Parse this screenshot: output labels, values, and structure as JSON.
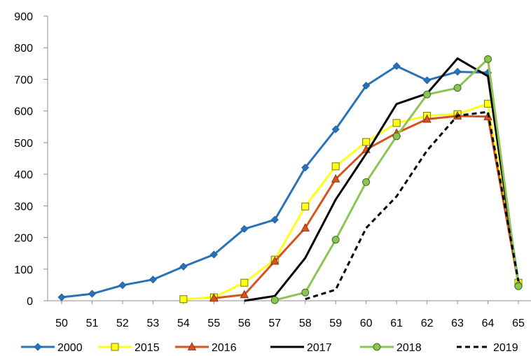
{
  "chart_data": {
    "type": "line",
    "x": [
      50,
      51,
      52,
      53,
      54,
      55,
      56,
      57,
      58,
      59,
      60,
      61,
      62,
      63,
      64,
      65
    ],
    "xticks": [
      "50",
      "51",
      "52",
      "53",
      "54",
      "55",
      "56",
      "57",
      "58",
      "59",
      "60",
      "61",
      "62",
      "63",
      "64",
      "65"
    ],
    "ylim": [
      0,
      900
    ],
    "yticks": [
      "0",
      "100",
      "200",
      "300",
      "400",
      "500",
      "600",
      "700",
      "800",
      "900"
    ],
    "grid": false,
    "legend_position": "bottom",
    "series": [
      {
        "name": "2000",
        "color": "#2a72b8",
        "dash": "solid",
        "marker": "diamond",
        "values": [
          11,
          22,
          49,
          67,
          108,
          146,
          227,
          256,
          421,
          542,
          680,
          742,
          697,
          724,
          721,
          57
        ]
      },
      {
        "name": "2015",
        "color": "#ffff1a",
        "dash": "solid",
        "marker": "square",
        "values": [
          null,
          null,
          null,
          null,
          5,
          11,
          57,
          130,
          298,
          425,
          502,
          562,
          585,
          590,
          623,
          57
        ]
      },
      {
        "name": "2016",
        "color": "#d5531f",
        "dash": "solid",
        "marker": "triangle",
        "values": [
          null,
          null,
          null,
          null,
          null,
          8,
          19,
          125,
          230,
          385,
          478,
          530,
          574,
          584,
          582,
          55
        ]
      },
      {
        "name": "2017",
        "color": "#000000",
        "dash": "solid",
        "marker": "none",
        "values": [
          null,
          null,
          null,
          null,
          null,
          null,
          0,
          15,
          135,
          320,
          465,
          622,
          655,
          766,
          710,
          50
        ]
      },
      {
        "name": "2018",
        "color": "#8cc454",
        "dash": "solid",
        "marker": "circle",
        "values": [
          null,
          null,
          null,
          null,
          null,
          null,
          null,
          2,
          26,
          193,
          375,
          520,
          652,
          673,
          764,
          46
        ]
      },
      {
        "name": "2019",
        "color": "#000000",
        "dash": "dashed",
        "marker": "none",
        "values": [
          null,
          null,
          null,
          null,
          null,
          null,
          null,
          null,
          5,
          35,
          230,
          330,
          475,
          585,
          597,
          62
        ]
      }
    ]
  }
}
